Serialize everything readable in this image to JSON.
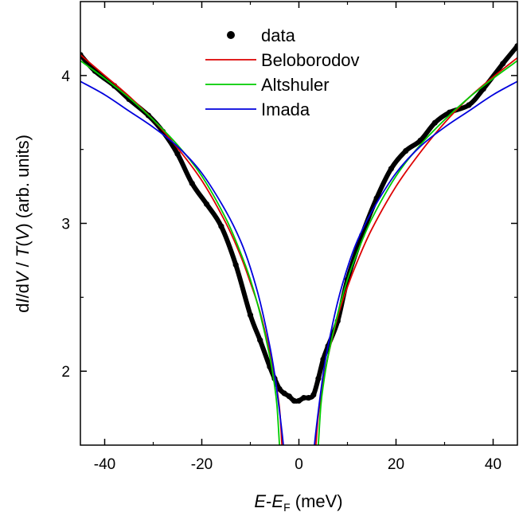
{
  "chart_data": {
    "type": "line",
    "xlabel": {
      "prefix": "E",
      "dash": "-",
      "main": "E",
      "sub": "F",
      "unit": " (meV)"
    },
    "ylabel": {
      "p1": "d",
      "p2": "I",
      "p3": "/d",
      "p4": "V",
      "p5": " / ",
      "p6": "T",
      "p7": "(",
      "p8": "V",
      "p9": ")",
      "p10": " (arb. units)"
    },
    "xlim": [
      -45,
      45
    ],
    "ylim": [
      1.5,
      4.5
    ],
    "xticks": [
      -40,
      -20,
      0,
      20,
      40
    ],
    "xtick_labels": [
      "-40",
      "-20",
      "0",
      "20",
      "40"
    ],
    "yticks": [
      2,
      3,
      4
    ],
    "ytick_labels": [
      "2",
      "3",
      "4"
    ],
    "legend_position": "top-center",
    "series": [
      {
        "name": "data",
        "style": "dots",
        "color": "#000000",
        "x": [
          -45,
          -42,
          -38,
          -35,
          -31,
          -28,
          -25,
          -22,
          -19,
          -16,
          -13,
          -10,
          -8,
          -6,
          -5,
          -4,
          -3,
          -2,
          -1,
          0,
          1,
          2,
          3,
          4,
          5,
          6,
          8,
          10,
          13,
          16,
          19,
          22,
          25,
          28,
          31,
          35,
          38,
          42,
          45
        ],
        "y": [
          4.14,
          4.03,
          3.93,
          3.84,
          3.73,
          3.62,
          3.47,
          3.27,
          3.13,
          2.98,
          2.72,
          2.38,
          2.21,
          2.03,
          1.95,
          1.88,
          1.85,
          1.83,
          1.8,
          1.8,
          1.82,
          1.82,
          1.84,
          1.95,
          2.08,
          2.17,
          2.34,
          2.62,
          2.92,
          3.17,
          3.37,
          3.49,
          3.56,
          3.68,
          3.75,
          3.8,
          3.91,
          4.08,
          4.2
        ]
      },
      {
        "name": "Beloborodov",
        "style": "line",
        "color": "#dd0000",
        "x": [
          -45,
          -40,
          -35,
          -30,
          -25,
          -20,
          -15,
          -12,
          -10,
          -8,
          -6,
          -5,
          -4,
          -3.5,
          3.5,
          4,
          5,
          6,
          8,
          10,
          12,
          15,
          20,
          25,
          30,
          35,
          40,
          45
        ],
        "y": [
          4.14,
          4.0,
          3.86,
          3.7,
          3.51,
          3.29,
          3.0,
          2.78,
          2.6,
          2.4,
          2.13,
          1.97,
          1.75,
          1.5,
          1.5,
          1.7,
          1.93,
          2.1,
          2.37,
          2.57,
          2.74,
          2.96,
          3.25,
          3.48,
          3.68,
          3.85,
          3.99,
          4.12
        ]
      },
      {
        "name": "Altshuler",
        "style": "line",
        "color": "#00cc00",
        "x": [
          -45,
          -40,
          -35,
          -30,
          -25,
          -20,
          -15,
          -12,
          -10,
          -8,
          -6,
          -5,
          -4.5,
          -4,
          4,
          4.5,
          5,
          6,
          8,
          10,
          12,
          15,
          20,
          25,
          30,
          35,
          40,
          45
        ],
        "y": [
          4.1,
          3.98,
          3.85,
          3.7,
          3.53,
          3.32,
          3.03,
          2.8,
          2.62,
          2.39,
          2.1,
          1.9,
          1.76,
          1.5,
          1.5,
          1.76,
          1.9,
          2.1,
          2.39,
          2.62,
          2.8,
          3.03,
          3.32,
          3.53,
          3.7,
          3.85,
          3.98,
          4.1
        ]
      },
      {
        "name": "Imada",
        "style": "line",
        "color": "#0000dd",
        "x": [
          -45,
          -40,
          -35,
          -30,
          -25,
          -20,
          -15,
          -12,
          -10,
          -8,
          -6,
          -5,
          -4,
          -3.2,
          -2.9,
          2.9,
          3.2,
          4,
          5,
          6,
          8,
          10,
          12,
          15,
          20,
          25,
          30,
          35,
          40,
          45
        ],
        "y": [
          3.96,
          3.87,
          3.76,
          3.65,
          3.52,
          3.34,
          3.08,
          2.88,
          2.7,
          2.47,
          2.17,
          1.98,
          1.73,
          1.5,
          1.35,
          1.35,
          1.5,
          1.73,
          1.98,
          2.17,
          2.47,
          2.7,
          2.88,
          3.08,
          3.34,
          3.52,
          3.65,
          3.76,
          3.87,
          3.96
        ]
      }
    ]
  }
}
